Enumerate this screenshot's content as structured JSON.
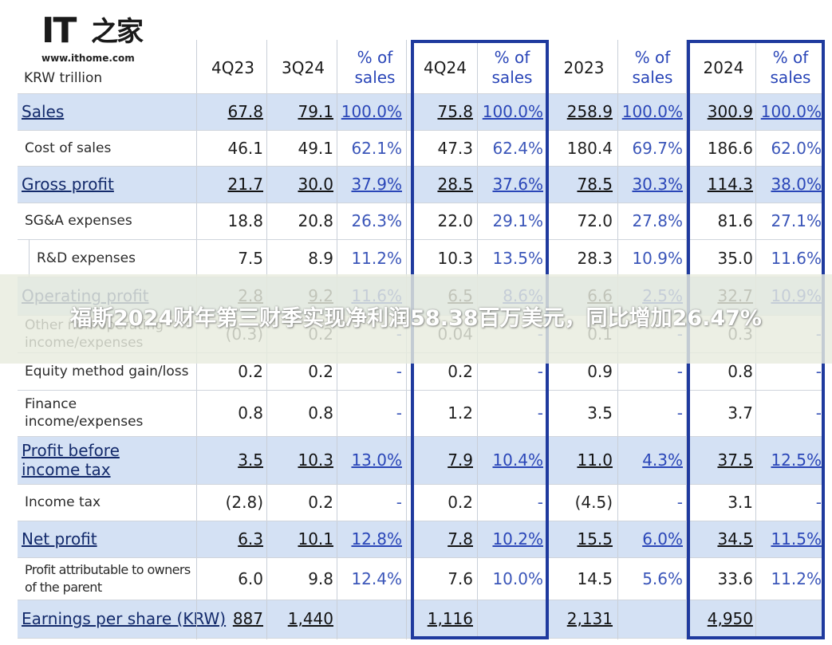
{
  "logo": {
    "brand": "IT",
    "brand_cn": "之家",
    "url": "www.ithome.com"
  },
  "unit_label": "KRW trillion",
  "headers": [
    "4Q23",
    "3Q24",
    "% of sales",
    "4Q24",
    "% of sales",
    "2023",
    "% of sales",
    "2024",
    "% of sales"
  ],
  "rows": [
    {
      "label": "Sales",
      "values": [
        "67.8",
        "79.1",
        "100.0%",
        "75.8",
        "100.0%",
        "258.9",
        "100.0%",
        "300.9",
        "100.0%"
      ]
    },
    {
      "label": "Cost of sales",
      "values": [
        "46.1",
        "49.1",
        "62.1%",
        "47.3",
        "62.4%",
        "180.4",
        "69.7%",
        "186.6",
        "62.0%"
      ]
    },
    {
      "label": "Gross profit",
      "values": [
        "21.7",
        "30.0",
        "37.9%",
        "28.5",
        "37.6%",
        "78.5",
        "30.3%",
        "114.3",
        "38.0%"
      ]
    },
    {
      "label": "SG&A expenses",
      "values": [
        "18.8",
        "20.8",
        "26.3%",
        "22.0",
        "29.1%",
        "72.0",
        "27.8%",
        "81.6",
        "27.1%"
      ]
    },
    {
      "label": "R&D expenses",
      "values": [
        "7.5",
        "8.9",
        "11.2%",
        "10.3",
        "13.5%",
        "28.3",
        "10.9%",
        "35.0",
        "11.6%"
      ]
    },
    {
      "label": "Operating profit",
      "values": [
        "2.8",
        "9.2",
        "11.6%",
        "6.5",
        "8.6%",
        "6.6",
        "2.5%",
        "32.7",
        "10.9%"
      ]
    },
    {
      "label": "Other non-operating income/expenses",
      "values": [
        "(0.3)",
        "0.2",
        "-",
        "0.04",
        "-",
        "0.1",
        "-",
        "0.3",
        "-"
      ]
    },
    {
      "label": "Equity method gain/loss",
      "values": [
        "0.2",
        "0.2",
        "-",
        "0.2",
        "-",
        "0.9",
        "-",
        "0.8",
        "-"
      ]
    },
    {
      "label": "Finance income/expenses",
      "values": [
        "0.8",
        "0.8",
        "-",
        "1.2",
        "-",
        "3.5",
        "-",
        "3.7",
        "-"
      ]
    },
    {
      "label": "Profit before income tax",
      "values": [
        "3.5",
        "10.3",
        "13.0%",
        "7.9",
        "10.4%",
        "11.0",
        "4.3%",
        "37.5",
        "12.5%"
      ]
    },
    {
      "label": "Income tax",
      "values": [
        "(2.8)",
        "0.2",
        "-",
        "0.2",
        "-",
        "(4.5)",
        "-",
        "3.1",
        "-"
      ]
    },
    {
      "label": "Net profit",
      "values": [
        "6.3",
        "10.1",
        "12.8%",
        "7.8",
        "10.2%",
        "15.5",
        "6.0%",
        "34.5",
        "11.5%"
      ]
    },
    {
      "label": "Profit attributable to owners of the parent",
      "values": [
        "6.0",
        "9.8",
        "12.4%",
        "7.6",
        "10.0%",
        "14.5",
        "5.6%",
        "33.6",
        "11.2%"
      ]
    },
    {
      "label": "Earnings per share (KRW)",
      "values": [
        "887",
        "1,440",
        "",
        "1,116",
        "",
        "2,131",
        "",
        "4,950",
        ""
      ]
    }
  ],
  "banner": {
    "title": "福斯2024财年第三财季实现净利润58.38百万美元，同比增加26.47%"
  },
  "colors": {
    "band": "#d4e1f4",
    "highlight_box": "#1f3a9e",
    "percent_text": "#2a46b8"
  }
}
